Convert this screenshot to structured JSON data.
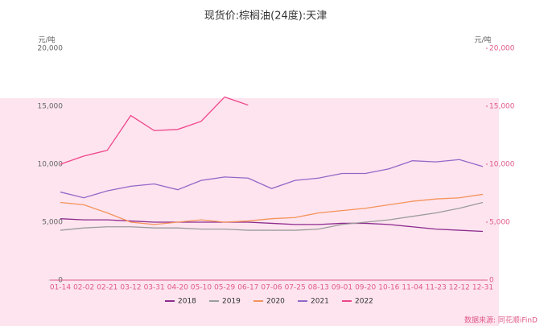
{
  "chart_data": {
    "type": "line",
    "title": "现货价:棕榈油(24度):天津",
    "y_label": "元/吨",
    "y2_label": "元/吨",
    "source": "数据来源: 同花顺iFinD",
    "categories": [
      "01-14",
      "02-02",
      "02-21",
      "03-12",
      "03-31",
      "04-20",
      "05-10",
      "05-29",
      "06-17",
      "07-06",
      "07-25",
      "08-13",
      "09-01",
      "09-20",
      "10-16",
      "11-04",
      "11-23",
      "12-12",
      "12-31"
    ],
    "series": [
      {
        "name": "2018",
        "color": "#8e2b8e",
        "values": [
          5300,
          5200,
          5200,
          5100,
          5000,
          5000,
          5000,
          5000,
          5000,
          4900,
          4800,
          4800,
          4900,
          4900,
          4800,
          4600,
          4400,
          4300,
          4200
        ]
      },
      {
        "name": "2019",
        "color": "#9c9c9c",
        "values": [
          4300,
          4500,
          4600,
          4600,
          4500,
          4500,
          4400,
          4400,
          4300,
          4300,
          4300,
          4400,
          4800,
          5000,
          5200,
          5500,
          5800,
          6200,
          6700
        ]
      },
      {
        "name": "2020",
        "color": "#f4935a",
        "values": [
          6700,
          6500,
          5800,
          5000,
          4800,
          5000,
          5200,
          5000,
          5100,
          5300,
          5400,
          5800,
          6000,
          6200,
          6500,
          6800,
          7000,
          7100,
          7400
        ]
      },
      {
        "name": "2021",
        "color": "#9566c8",
        "values": [
          7600,
          7100,
          7700,
          8100,
          8300,
          7800,
          8600,
          8900,
          8800,
          7900,
          8600,
          8800,
          9200,
          9200,
          9600,
          10300,
          10200,
          10400,
          9800
        ]
      },
      {
        "name": "2022",
        "color": "#f0458a",
        "values": [
          10000,
          10700,
          11200,
          14200,
          12900,
          13000,
          13700,
          15800,
          15100,
          null,
          null,
          null,
          null,
          null,
          null,
          null,
          null,
          null,
          null
        ]
      }
    ],
    "ylim": [
      0,
      20000
    ],
    "yticks": [
      0,
      {
        "value": 5000,
        "label": "5,000"
      },
      {
        "value": 10000,
        "label": "10,000"
      },
      {
        "value": 15000,
        "label": "15,000"
      },
      {
        "value": 20000,
        "label": "20,000"
      }
    ],
    "y2lim": [
      0,
      20000
    ],
    "y2ticks": [
      0,
      {
        "value": 5000,
        "label": "5,000"
      },
      {
        "value": 10000,
        "label": "10,000"
      },
      {
        "value": 15000,
        "label": "15,000"
      },
      {
        "value": 20000,
        "label": "20,000"
      }
    ],
    "legend": "bottom"
  }
}
